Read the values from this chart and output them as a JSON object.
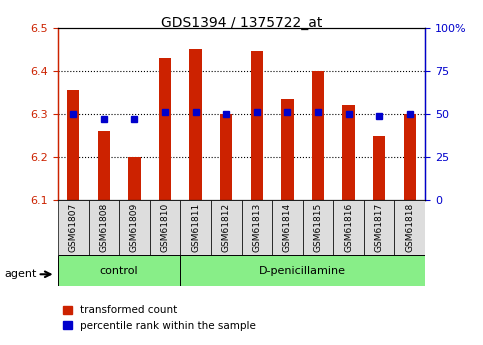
{
  "title": "GDS1394 / 1375722_at",
  "samples": [
    "GSM61807",
    "GSM61808",
    "GSM61809",
    "GSM61810",
    "GSM61811",
    "GSM61812",
    "GSM61813",
    "GSM61814",
    "GSM61815",
    "GSM61816",
    "GSM61817",
    "GSM61818"
  ],
  "red_values": [
    6.355,
    6.26,
    6.2,
    6.43,
    6.45,
    6.3,
    6.445,
    6.335,
    6.4,
    6.32,
    6.248,
    6.3
  ],
  "blue_pct": [
    50,
    47,
    47,
    51,
    51,
    50,
    51,
    51,
    51,
    50,
    49,
    50
  ],
  "ylim": [
    6.1,
    6.5
  ],
  "y2lim": [
    0,
    100
  ],
  "y_ticks": [
    6.1,
    6.2,
    6.3,
    6.4,
    6.5
  ],
  "y2_ticks": [
    0,
    25,
    50,
    75,
    100
  ],
  "y2_labels": [
    "0",
    "25",
    "50",
    "75",
    "100%"
  ],
  "baseline": 6.1,
  "red_color": "#cc2200",
  "blue_color": "#0000cc",
  "bar_width": 0.4,
  "control_count": 4,
  "group_labels": [
    "control",
    "D-penicillamine"
  ],
  "group_color": "#88ee88",
  "tick_bg": "#dddddd",
  "agent_label": "agent",
  "legend_red": "transformed count",
  "legend_blue": "percentile rank within the sample"
}
